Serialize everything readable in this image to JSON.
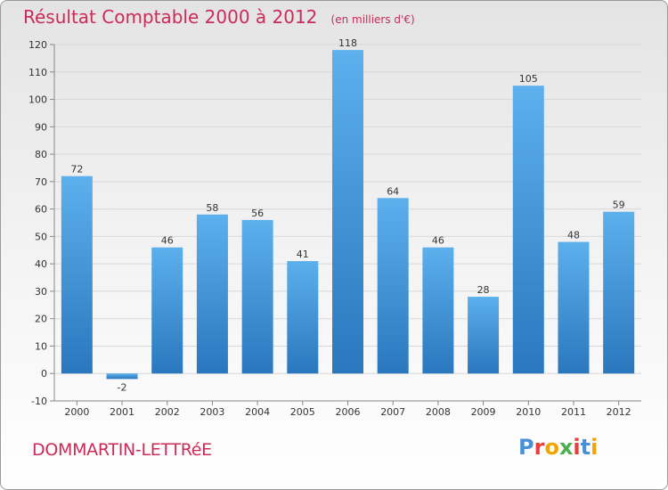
{
  "title": "Résultat Comptable 2000 à 2012",
  "unit_note": "(en milliers d'€)",
  "commune": "DOMMARTIN-LETTRéE",
  "logo": {
    "text": "Proxiti",
    "colors": [
      "#4a90d9",
      "#e83e3e",
      "#f0a500",
      "#4caf50",
      "#e83e3e",
      "#4a90d9",
      "#f0a500"
    ]
  },
  "colors": {
    "bar": "#3d8fd6",
    "bar_light": "#5aaeea",
    "bar_dark": "#2a75bd",
    "title": "#cc2a5a"
  },
  "chart_data": {
    "type": "bar",
    "categories": [
      "2000",
      "2001",
      "2002",
      "2003",
      "2004",
      "2005",
      "2006",
      "2007",
      "2008",
      "2009",
      "2010",
      "2011",
      "2012"
    ],
    "values": [
      72,
      -2,
      46,
      58,
      56,
      41,
      118,
      64,
      46,
      28,
      105,
      48,
      59
    ],
    "ylim": [
      -10,
      120
    ],
    "yticks": [
      -10,
      0,
      10,
      20,
      30,
      40,
      50,
      60,
      70,
      80,
      90,
      100,
      110,
      120
    ],
    "grid": true,
    "title": "Résultat Comptable 2000 à 2012",
    "xlabel": "",
    "ylabel": "(en milliers d'€)"
  }
}
